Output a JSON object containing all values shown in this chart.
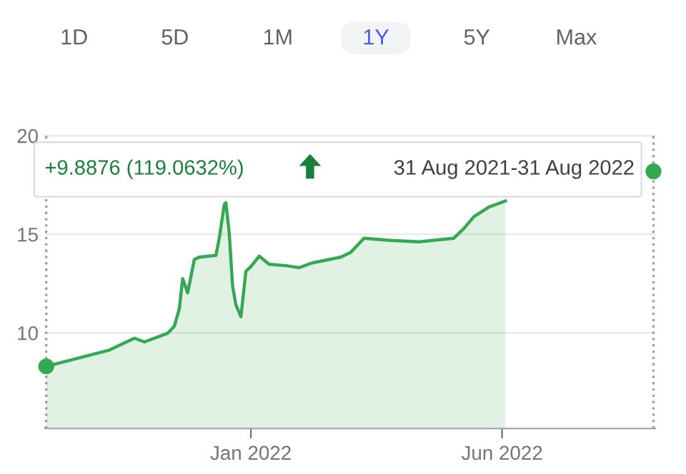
{
  "chart_data": {
    "type": "area",
    "series": [
      {
        "color": "#34a853",
        "x": [
          "2021-08-31",
          "2021-09-16",
          "2021-10-08",
          "2021-10-23",
          "2021-10-29",
          "2021-11-12",
          "2021-11-16",
          "2021-11-19",
          "2021-11-21",
          "2021-11-24",
          "2021-11-28",
          "2021-12-01",
          "2021-12-07",
          "2021-12-11",
          "2021-12-13",
          "2021-12-16",
          "2021-12-17",
          "2021-12-19",
          "2021-12-21",
          "2021-12-23",
          "2021-12-26",
          "2021-12-29",
          "2022-01-01",
          "2022-01-06",
          "2022-01-12",
          "2022-01-22",
          "2022-01-30",
          "2022-02-07",
          "2022-02-24",
          "2022-03-02",
          "2022-03-10",
          "2022-03-26",
          "2022-04-12",
          "2022-05-03",
          "2022-05-09",
          "2022-05-15",
          "2022-05-24",
          "2022-06-03"
        ],
        "values": [
          8.3,
          8.65,
          9.13,
          9.73,
          9.54,
          9.98,
          10.34,
          11.23,
          12.75,
          12.03,
          13.72,
          13.84,
          13.89,
          13.93,
          14.8,
          16.5,
          16.6,
          15.05,
          12.39,
          11.43,
          10.82,
          13.12,
          13.36,
          13.89,
          13.48,
          13.41,
          13.31,
          13.55,
          13.84,
          14.08,
          14.8,
          14.69,
          14.62,
          14.8,
          15.29,
          15.89,
          16.38,
          16.69
        ]
      },
      {
        "type": "scatter",
        "marker": "circle",
        "color": "#34a853",
        "x": [
          "2021-08-31",
          "2022-08-31"
        ],
        "values": [
          8.3,
          18.19
        ]
      }
    ],
    "ylim": [
      5.15,
      20.15
    ],
    "yticks": [
      10,
      15,
      20
    ],
    "xlim": [
      "2021-08-30",
      "2022-09-01"
    ],
    "xticks": [
      {
        "value": "2022-01-01",
        "label": "Jan 2022"
      },
      {
        "value": "2022-06-01",
        "label": "Jun 2022"
      }
    ],
    "grid": "y",
    "ref_lines": [
      {
        "axis": "x",
        "value": "2021-08-31",
        "color": "#9aa0a6",
        "line_style": "dotted"
      },
      {
        "axis": "x",
        "value": "2022-08-31",
        "color": "#9aa0a6",
        "line_style": "dotted"
      }
    ],
    "annotations": [
      "1D",
      "5D",
      "1M",
      "1Y",
      "5Y",
      "Max",
      "+9.8876 (119.0632%)",
      "31 Aug 2021-31 Aug 2022"
    ]
  }
}
